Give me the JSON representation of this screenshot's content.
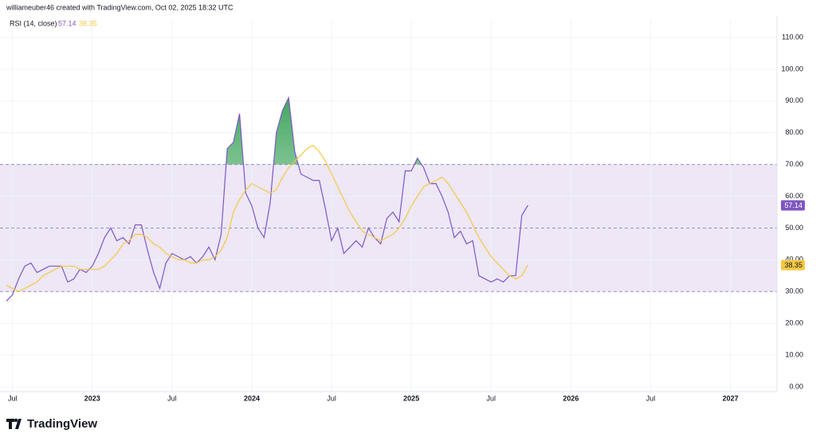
{
  "header": "williameuber46 created with TradingView.com, Oct 02, 2025 18:32 UTC",
  "footer": "TradingView",
  "chart_data": {
    "type": "line",
    "legend_title": "RSI (14, close)",
    "categories": [
      null,
      "Jul",
      null,
      null,
      null,
      null,
      null,
      null,
      null,
      null,
      null,
      null,
      null,
      null,
      "2023",
      null,
      null,
      null,
      null,
      null,
      null,
      null,
      null,
      null,
      null,
      null,
      null,
      "Jul",
      null,
      null,
      null,
      null,
      null,
      null,
      null,
      null,
      null,
      null,
      null,
      null,
      "2024",
      null,
      null,
      null,
      null,
      null,
      null,
      null,
      null,
      null,
      null,
      null,
      null,
      "Jul",
      null,
      null,
      null,
      null,
      null,
      null,
      null,
      null,
      null,
      null,
      null,
      null,
      "2025",
      null,
      null,
      null,
      null,
      null,
      null,
      null,
      null,
      null,
      null,
      null,
      null,
      "Jul",
      null,
      null,
      null,
      null,
      null,
      null,
      null,
      null,
      null,
      null,
      null,
      null,
      "2026",
      null,
      null,
      null,
      null,
      null,
      null,
      null,
      null,
      null,
      null,
      null,
      null,
      "Jul",
      null,
      null,
      null,
      null,
      null,
      null,
      null,
      null,
      null,
      null,
      null,
      null,
      "2027",
      null,
      null,
      null,
      null,
      null,
      null
    ],
    "series": [
      {
        "name": "RSI",
        "color": "#7e57c2",
        "values": [
          27,
          29,
          34,
          38,
          39,
          36,
          37,
          38,
          38,
          38,
          33,
          34,
          37,
          36,
          38,
          42,
          47,
          50,
          46,
          47,
          45,
          51,
          51,
          43,
          36,
          31,
          39,
          42,
          41,
          40,
          41,
          39,
          41,
          44,
          40,
          48,
          75,
          77,
          86,
          61,
          57,
          50,
          47,
          58,
          80,
          87,
          91,
          74,
          67,
          66,
          65,
          65,
          56,
          46,
          50,
          42,
          44,
          46,
          44,
          50,
          47,
          45,
          53,
          55,
          52,
          68,
          68,
          72,
          69,
          64,
          64,
          60,
          55,
          47,
          49,
          45,
          46,
          35,
          34,
          33,
          34,
          33,
          35,
          35,
          54,
          57.14,
          null,
          null,
          null,
          null,
          null,
          null,
          null,
          null,
          null,
          null,
          null,
          null,
          null,
          null,
          null,
          null,
          null,
          null,
          null,
          null,
          null,
          null,
          null,
          null,
          null,
          null,
          null,
          null,
          null,
          null,
          null,
          null,
          null,
          null,
          null,
          null,
          null,
          null,
          null
        ]
      },
      {
        "name": "RSI MA",
        "color": "#f5c842",
        "values": [
          32,
          31,
          30,
          31,
          32,
          33,
          35,
          36,
          37,
          38,
          38,
          38,
          37,
          37,
          37,
          37,
          38,
          40,
          42,
          45,
          46,
          48,
          48,
          47,
          45,
          44,
          42,
          41,
          40,
          40,
          39,
          39,
          40,
          40,
          41,
          43,
          47,
          55,
          59,
          62,
          64,
          63,
          62,
          61,
          62,
          66,
          69,
          71,
          73,
          75,
          76,
          74,
          71,
          67,
          63,
          59,
          55,
          52,
          49,
          48,
          47,
          46,
          47,
          48,
          50,
          53,
          57,
          60,
          63,
          64,
          65,
          66,
          64,
          61,
          58,
          55,
          51,
          47,
          44,
          41,
          39,
          37,
          35,
          34,
          35,
          38.35,
          null,
          null,
          null,
          null,
          null,
          null,
          null,
          null,
          null,
          null,
          null,
          null,
          null,
          null,
          null,
          null,
          null,
          null,
          null,
          null,
          null,
          null,
          null,
          null,
          null,
          null,
          null,
          null,
          null,
          null,
          null,
          null,
          null,
          null,
          null,
          null,
          null,
          null,
          null
        ]
      }
    ],
    "ylim": [
      -1.5,
      113
    ],
    "yticks": [
      {
        "value": 0,
        "label": "0.00"
      },
      {
        "value": 10,
        "label": "10.00"
      },
      {
        "value": 20,
        "label": "20.00"
      },
      {
        "value": 30,
        "label": "30.00"
      },
      {
        "value": 40,
        "label": "40.00"
      },
      {
        "value": 50,
        "label": "50.00"
      },
      {
        "value": 60,
        "label": "60.00"
      },
      {
        "value": 70,
        "label": "70.00"
      },
      {
        "value": 80,
        "label": "80.00"
      },
      {
        "value": 90,
        "label": "90.00"
      },
      {
        "value": 100,
        "label": "100.00"
      },
      {
        "value": 110,
        "label": "110.00"
      }
    ],
    "overbought": 70,
    "oversold": 30,
    "middle": 50,
    "band_color": "#ede7f6",
    "grid": true
  }
}
